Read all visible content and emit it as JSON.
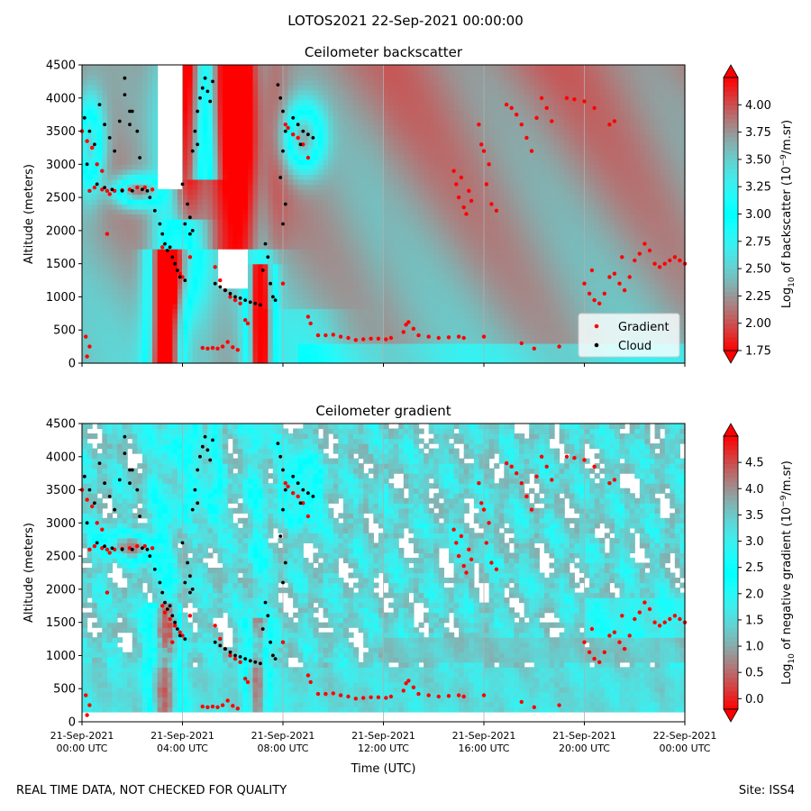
{
  "figure": {
    "suptitle": "LOTOS2021 22-Sep-2021 00:00:00",
    "footer_left": "REAL TIME DATA, NOT CHECKED FOR QUALITY",
    "footer_right": "Site: ISS4"
  },
  "chart_data": [
    {
      "type": "heatmap",
      "title": "Ceilometer backscatter",
      "xlabel": "",
      "ylabel": "Altitude (meters)",
      "ylim": [
        0,
        4500
      ],
      "yticks": [
        0,
        500,
        1000,
        1500,
        2000,
        2500,
        3000,
        3500,
        4000,
        4500
      ],
      "xticks": [
        "21-Sep-2021\n00:00 UTC",
        "21-Sep-2021\n04:00 UTC",
        "21-Sep-2021\n08:00 UTC",
        "21-Sep-2021\n12:00 UTC",
        "21-Sep-2021\n16:00 UTC",
        "21-Sep-2021\n20:00 UTC",
        "22-Sep-2021\n00:00 UTC"
      ],
      "xlim_hours": [
        0,
        24
      ],
      "grid": true,
      "colorbar": {
        "label": "Log10 of backscatter (10^-9/m.sr)",
        "label_parts": [
          "Log",
          "10",
          " of backscatter (10",
          "−9",
          "/m.sr)"
        ],
        "range": [
          1.75,
          4.25
        ],
        "ticks": [
          "1.75",
          "2.00",
          "2.25",
          "2.50",
          "2.75",
          "3.00",
          "3.25",
          "3.50",
          "3.75",
          "4.00"
        ],
        "extend": "both",
        "colormap": "rainbow"
      },
      "legend": {
        "placement": "lower-right",
        "entries": [
          {
            "label": "Gradient",
            "color": "#ff0000"
          },
          {
            "label": "Cloud",
            "color": "#000000"
          }
        ]
      },
      "series": [
        {
          "name": "Gradient",
          "color": "#ff0000",
          "points": "gradient_points"
        },
        {
          "name": "Cloud",
          "color": "#000000",
          "points": "cloud_points"
        }
      ]
    },
    {
      "type": "heatmap",
      "title": "Ceilometer gradient",
      "xlabel": "Time (UTC)",
      "ylabel": "Altitude (meters)",
      "ylim": [
        0,
        4500
      ],
      "yticks": [
        0,
        500,
        1000,
        1500,
        2000,
        2500,
        3000,
        3500,
        4000,
        4500
      ],
      "xticks": [
        "21-Sep-2021\n00:00 UTC",
        "21-Sep-2021\n04:00 UTC",
        "21-Sep-2021\n08:00 UTC",
        "21-Sep-2021\n12:00 UTC",
        "21-Sep-2021\n16:00 UTC",
        "21-Sep-2021\n20:00 UTC",
        "22-Sep-2021\n00:00 UTC"
      ],
      "xlim_hours": [
        0,
        24
      ],
      "grid": true,
      "colorbar": {
        "label": "Log10 of negative gradient (10^-9/m.sr)",
        "label_parts": [
          "Log",
          "10",
          " of negative gradient (10",
          "−9",
          "/m.sr)"
        ],
        "range": [
          -0.2,
          5.0
        ],
        "ticks": [
          "0.0",
          "0.5",
          "1.0",
          "1.5",
          "2.0",
          "2.5",
          "3.0",
          "3.5",
          "4.0",
          "4.5"
        ],
        "extend": "both",
        "colormap": "rainbow"
      },
      "series": [
        {
          "name": "Gradient",
          "color": "#ff0000",
          "points": "gradient_points"
        },
        {
          "name": "Cloud",
          "color": "#000000",
          "points": "cloud_points"
        }
      ]
    }
  ],
  "gradient_points": [
    [
      0.0,
      3500
    ],
    [
      0.2,
      3350
    ],
    [
      0.4,
      3250
    ],
    [
      0.6,
      3000
    ],
    [
      0.8,
      2900
    ],
    [
      0.15,
      400
    ],
    [
      0.3,
      250
    ],
    [
      0.2,
      100
    ],
    [
      0.5,
      2650
    ],
    [
      0.8,
      2620
    ],
    [
      1.0,
      2600
    ],
    [
      1.3,
      2600
    ],
    [
      1.6,
      2610
    ],
    [
      1.9,
      2620
    ],
    [
      2.2,
      2650
    ],
    [
      2.5,
      2650
    ],
    [
      2.8,
      2620
    ],
    [
      0.3,
      2600
    ],
    [
      1.1,
      2550
    ],
    [
      1.0,
      1950
    ],
    [
      3.3,
      1650
    ],
    [
      3.5,
      1550
    ],
    [
      3.7,
      1450
    ],
    [
      3.9,
      1350
    ],
    [
      4.0,
      1300
    ],
    [
      3.6,
      1200
    ],
    [
      3.2,
      1750
    ],
    [
      4.3,
      1600
    ],
    [
      4.8,
      230
    ],
    [
      5.0,
      220
    ],
    [
      5.2,
      230
    ],
    [
      5.4,
      220
    ],
    [
      5.6,
      250
    ],
    [
      5.8,
      320
    ],
    [
      6.0,
      240
    ],
    [
      6.2,
      200
    ],
    [
      5.3,
      1450
    ],
    [
      5.5,
      1250
    ],
    [
      5.7,
      1100
    ],
    [
      5.9,
      1000
    ],
    [
      6.1,
      950
    ],
    [
      6.3,
      900
    ],
    [
      6.5,
      650
    ],
    [
      6.6,
      600
    ],
    [
      8.2,
      3550
    ],
    [
      8.4,
      3450
    ],
    [
      8.6,
      3400
    ],
    [
      8.8,
      3300
    ],
    [
      9.0,
      3100
    ],
    [
      8.1,
      3600
    ],
    [
      9.1,
      600
    ],
    [
      9.0,
      700
    ],
    [
      8.0,
      1200
    ],
    [
      9.4,
      420
    ],
    [
      9.7,
      420
    ],
    [
      10.0,
      430
    ],
    [
      10.3,
      400
    ],
    [
      10.6,
      380
    ],
    [
      10.9,
      350
    ],
    [
      11.2,
      360
    ],
    [
      11.5,
      370
    ],
    [
      11.8,
      370
    ],
    [
      12.1,
      360
    ],
    [
      12.3,
      380
    ],
    [
      12.8,
      470
    ],
    [
      12.9,
      580
    ],
    [
      13.0,
      620
    ],
    [
      13.2,
      520
    ],
    [
      13.4,
      420
    ],
    [
      13.8,
      400
    ],
    [
      14.2,
      380
    ],
    [
      14.6,
      390
    ],
    [
      15.0,
      400
    ],
    [
      15.2,
      380
    ],
    [
      14.8,
      2900
    ],
    [
      14.9,
      2700
    ],
    [
      15.0,
      2500
    ],
    [
      15.2,
      2350
    ],
    [
      15.3,
      2250
    ],
    [
      15.4,
      2600
    ],
    [
      15.5,
      2450
    ],
    [
      15.1,
      2800
    ],
    [
      15.8,
      3600
    ],
    [
      16.0,
      3200
    ],
    [
      16.1,
      2700
    ],
    [
      16.3,
      2400
    ],
    [
      16.5,
      2300
    ],
    [
      16.2,
      3000
    ],
    [
      15.9,
      3300
    ],
    [
      16.9,
      3900
    ],
    [
      17.1,
      3850
    ],
    [
      17.3,
      3750
    ],
    [
      17.5,
      3600
    ],
    [
      17.7,
      3400
    ],
    [
      17.9,
      3200
    ],
    [
      18.1,
      3700
    ],
    [
      18.3,
      4000
    ],
    [
      18.5,
      3850
    ],
    [
      18.7,
      3650
    ],
    [
      19.3,
      4000
    ],
    [
      19.6,
      3980
    ],
    [
      20.0,
      3950
    ],
    [
      20.4,
      3850
    ],
    [
      21.2,
      3650
    ],
    [
      21.0,
      3600
    ],
    [
      16.0,
      400
    ],
    [
      17.5,
      300
    ],
    [
      19.0,
      250
    ],
    [
      18.0,
      220
    ],
    [
      20.0,
      1200
    ],
    [
      20.2,
      1050
    ],
    [
      20.4,
      950
    ],
    [
      20.6,
      900
    ],
    [
      20.8,
      1050
    ],
    [
      21.0,
      1300
    ],
    [
      21.2,
      1350
    ],
    [
      21.4,
      1200
    ],
    [
      21.6,
      1100
    ],
    [
      21.8,
      1300
    ],
    [
      22.0,
      1550
    ],
    [
      22.2,
      1650
    ],
    [
      22.4,
      1800
    ],
    [
      22.6,
      1700
    ],
    [
      22.8,
      1500
    ],
    [
      23.0,
      1450
    ],
    [
      23.2,
      1500
    ],
    [
      23.4,
      1550
    ],
    [
      23.6,
      1600
    ],
    [
      23.8,
      1550
    ],
    [
      24.0,
      1500
    ],
    [
      21.5,
      1600
    ],
    [
      20.3,
      1400
    ]
  ],
  "cloud_points": [
    [
      0.1,
      3700
    ],
    [
      0.3,
      3500
    ],
    [
      0.5,
      3300
    ],
    [
      0.7,
      3900
    ],
    [
      0.9,
      3600
    ],
    [
      1.1,
      3400
    ],
    [
      1.3,
      3200
    ],
    [
      1.5,
      3650
    ],
    [
      1.7,
      4050
    ],
    [
      1.9,
      3800
    ],
    [
      0.2,
      3000
    ],
    [
      0.6,
      2700
    ],
    [
      0.9,
      2650
    ],
    [
      1.2,
      2620
    ],
    [
      1.6,
      2600
    ],
    [
      2.0,
      2600
    ],
    [
      2.4,
      2620
    ],
    [
      2.6,
      2600
    ],
    [
      1.7,
      4300
    ],
    [
      1.9,
      3600
    ],
    [
      2.0,
      3800
    ],
    [
      2.2,
      3500
    ],
    [
      2.3,
      3100
    ],
    [
      2.7,
      2500
    ],
    [
      2.9,
      2300
    ],
    [
      3.1,
      2100
    ],
    [
      3.2,
      1950
    ],
    [
      3.3,
      1800
    ],
    [
      3.4,
      1700
    ],
    [
      3.6,
      1600
    ],
    [
      3.7,
      1500
    ],
    [
      3.8,
      1400
    ],
    [
      3.9,
      1300
    ],
    [
      4.1,
      1250
    ],
    [
      3.5,
      1750
    ],
    [
      4.2,
      2400
    ],
    [
      4.3,
      2200
    ],
    [
      4.4,
      2000
    ],
    [
      4.1,
      2100
    ],
    [
      4.3,
      1950
    ],
    [
      4.0,
      2700
    ],
    [
      4.4,
      3200
    ],
    [
      4.5,
      3500
    ],
    [
      4.6,
      3800
    ],
    [
      4.7,
      4000
    ],
    [
      4.8,
      4150
    ],
    [
      4.9,
      4300
    ],
    [
      5.0,
      4100
    ],
    [
      5.1,
      3950
    ],
    [
      5.2,
      4250
    ],
    [
      4.6,
      3300
    ],
    [
      5.3,
      1200
    ],
    [
      5.5,
      1150
    ],
    [
      5.7,
      1100
    ],
    [
      5.9,
      1050
    ],
    [
      6.1,
      1000
    ],
    [
      6.3,
      980
    ],
    [
      6.5,
      950
    ],
    [
      6.7,
      920
    ],
    [
      6.9,
      900
    ],
    [
      7.1,
      880
    ],
    [
      7.2,
      1400
    ],
    [
      7.3,
      1800
    ],
    [
      7.4,
      1600
    ],
    [
      7.5,
      1200
    ],
    [
      7.6,
      1000
    ],
    [
      7.7,
      950
    ],
    [
      7.8,
      4200
    ],
    [
      7.9,
      4000
    ],
    [
      8.0,
      3800
    ],
    [
      8.1,
      3500
    ],
    [
      8.0,
      3200
    ],
    [
      7.9,
      2800
    ],
    [
      8.1,
      2400
    ],
    [
      8.0,
      2100
    ],
    [
      8.4,
      3700
    ],
    [
      8.6,
      3600
    ],
    [
      8.8,
      3500
    ],
    [
      9.0,
      3450
    ],
    [
      9.2,
      3400
    ],
    [
      8.7,
      3300
    ]
  ]
}
